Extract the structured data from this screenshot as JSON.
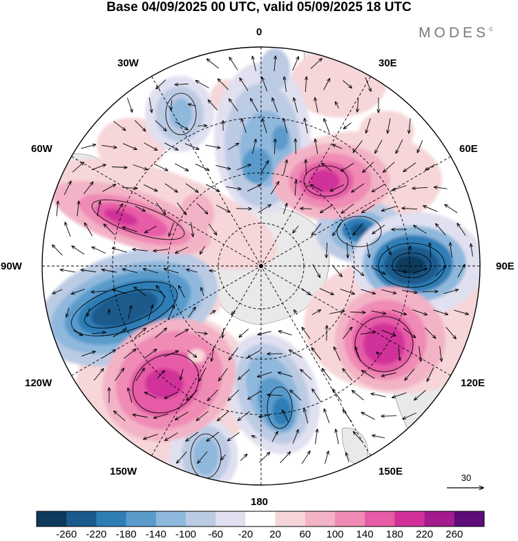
{
  "title": "Base 04/09/2025 00 UTC, valid 05/09/2025 18 UTC",
  "brand": "MODES",
  "brand_mark": "©",
  "longitude_labels": {
    "lon_0": "0",
    "lon_30e": "30E",
    "lon_60e": "60E",
    "lon_90e": "90E",
    "lon_120e": "120E",
    "lon_150e": "150E",
    "lon_180": "180",
    "lon_150w": "150W",
    "lon_120w": "120W",
    "lon_90w": "90W",
    "lon_60w": "60W",
    "lon_30w": "30W"
  },
  "vector_reference": "30",
  "colorbar": {
    "ticks": [
      "-260",
      "-220",
      "-180",
      "-140",
      "-100",
      "-60",
      "-20",
      "20",
      "60",
      "100",
      "140",
      "180",
      "220",
      "260"
    ],
    "colors": [
      "#0d3a5c",
      "#1a5a8c",
      "#2f7db5",
      "#5a9bcb",
      "#8fb8dd",
      "#bccbe4",
      "#e0e0f0",
      "#ffffff",
      "#f6d6d8",
      "#f3b3c6",
      "#ef8bb5",
      "#e65ca6",
      "#d1309a",
      "#a31b8c",
      "#5e0c7a"
    ]
  },
  "chart_data": {
    "type": "heatmap",
    "projection": "south polar stereographic",
    "title": "Base 04/09/2025 00 UTC, valid 05/09/2025 18 UTC",
    "value_range": [
      -260,
      260
    ],
    "contour_interval": 40,
    "anomaly_centers": [
      {
        "name": "positive-anomaly-south-atlantic-east",
        "lon": 45,
        "lat": -48,
        "value": 210
      },
      {
        "name": "negative-anomaly-indian-ocean-west",
        "lon": 75,
        "lat": -58,
        "value": -190
      },
      {
        "name": "negative-anomaly-indian-ocean",
        "lon": 98,
        "lat": -52,
        "value": -220
      },
      {
        "name": "positive-anomaly-south-australia",
        "lon": 128,
        "lat": -45,
        "value": 220
      },
      {
        "name": "negative-anomaly-tasman",
        "lon": 170,
        "lat": -48,
        "value": -200
      },
      {
        "name": "negative-anomaly-south-pacific",
        "lon": -155,
        "lat": -42,
        "value": -140
      },
      {
        "name": "positive-anomaly-south-pacific",
        "lon": -130,
        "lat": -48,
        "value": 220
      },
      {
        "name": "negative-anomaly-amundsen",
        "lon": -100,
        "lat": -52,
        "value": -240
      },
      {
        "name": "positive-anomaly-drake-passage",
        "lon": -70,
        "lat": -55,
        "value": 180
      },
      {
        "name": "negative-anomaly-south-atlantic",
        "lon": -35,
        "lat": -45,
        "value": -120
      },
      {
        "name": "negative-anomaly-weddell",
        "lon": 5,
        "lat": -50,
        "value": -160
      }
    ],
    "vector_reference_magnitude": 30
  }
}
